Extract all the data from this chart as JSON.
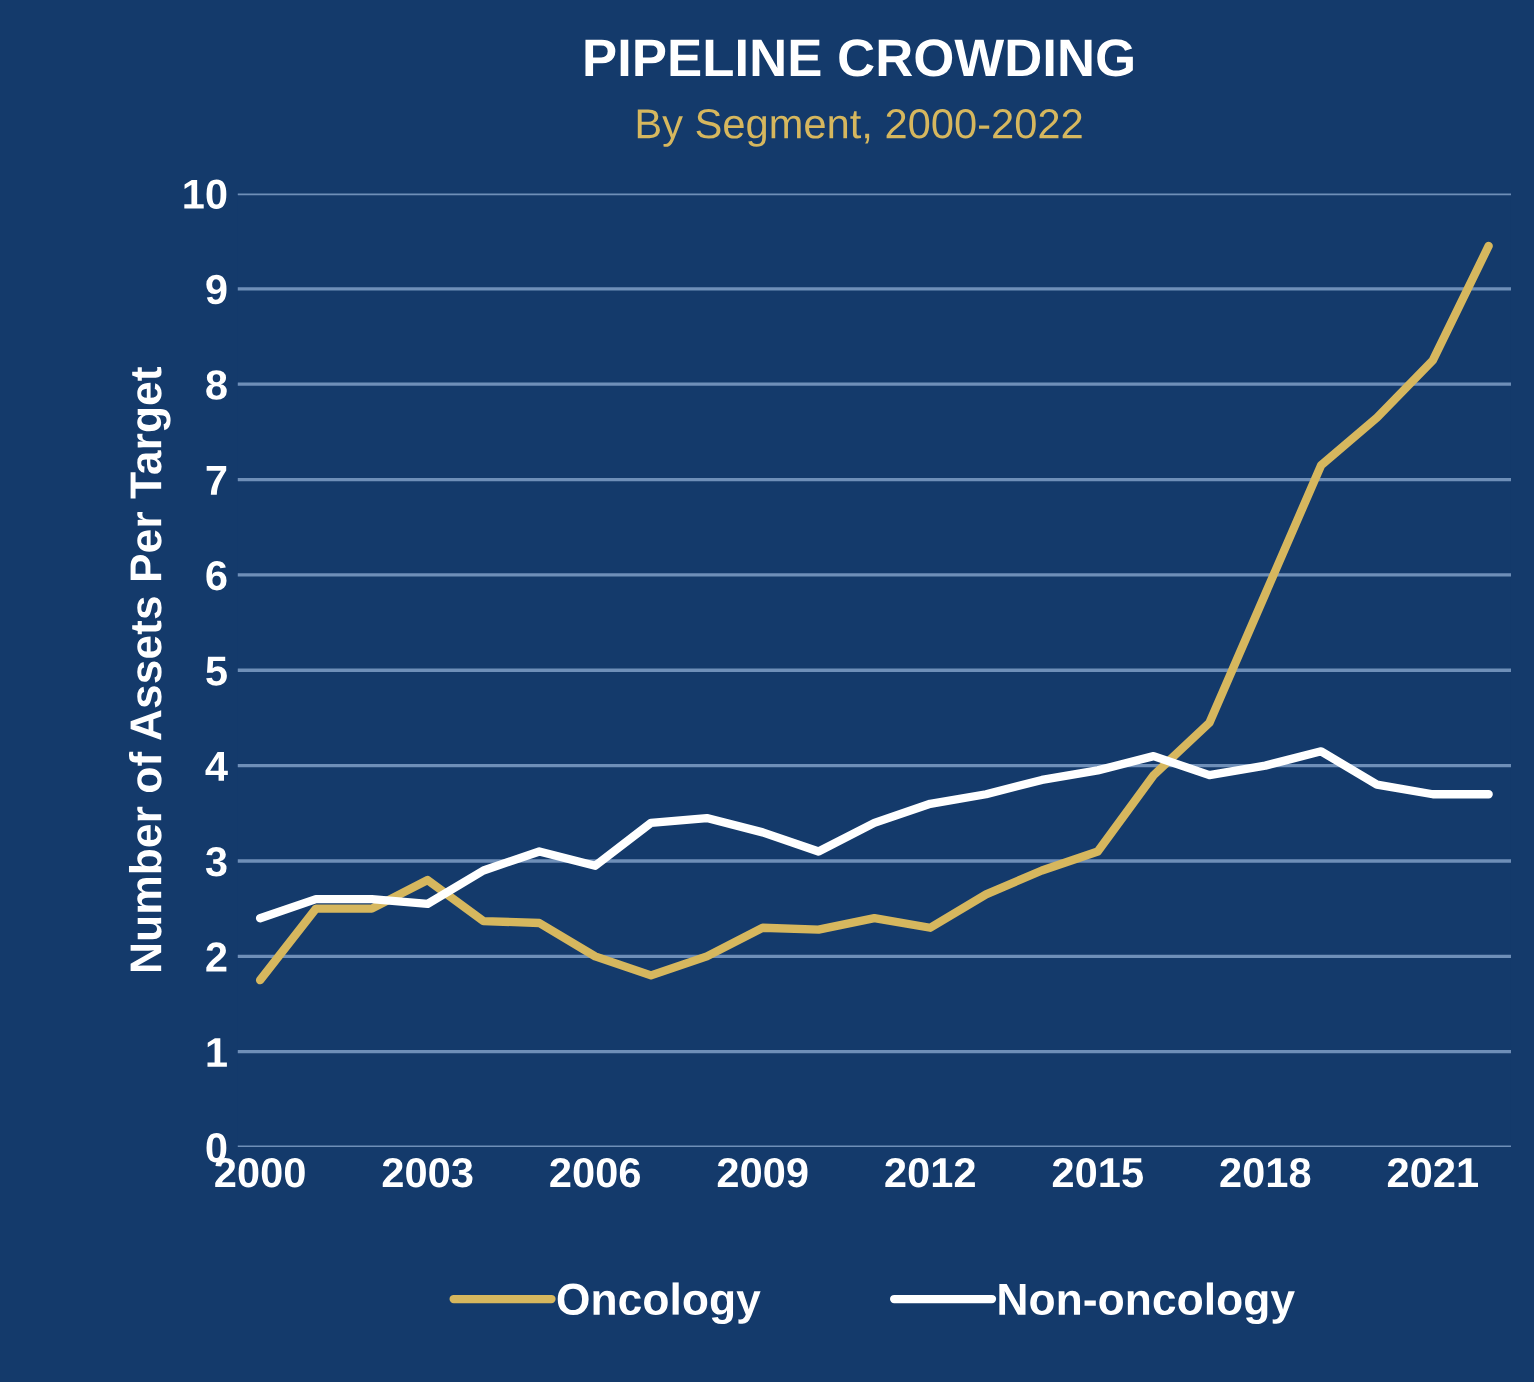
{
  "chart_data": {
    "type": "line",
    "title": "PIPELINE CROWDING",
    "subtitle": "By Segment, 2000-2022",
    "ylabel": "Number of Assets Per Target",
    "x": [
      2000,
      2001,
      2002,
      2003,
      2004,
      2005,
      2006,
      2007,
      2008,
      2009,
      2010,
      2011,
      2012,
      2013,
      2014,
      2015,
      2016,
      2017,
      2018,
      2019,
      2020,
      2021,
      2022
    ],
    "series": [
      {
        "name": "Oncology",
        "color": "#d6b75e",
        "values": [
          1.75,
          2.5,
          2.5,
          2.8,
          2.37,
          2.35,
          2.0,
          1.8,
          2.0,
          2.3,
          2.28,
          2.4,
          2.3,
          2.65,
          2.9,
          3.1,
          3.9,
          4.45,
          5.8,
          7.15,
          7.65,
          8.25,
          9.45
        ]
      },
      {
        "name": "Non-oncology",
        "color": "#ffffff",
        "values": [
          2.4,
          2.6,
          2.6,
          2.55,
          2.9,
          3.1,
          2.95,
          3.4,
          3.45,
          3.3,
          3.1,
          3.4,
          3.6,
          3.7,
          3.85,
          3.95,
          4.1,
          3.9,
          4.0,
          4.15,
          3.8,
          3.7,
          3.7
        ]
      }
    ],
    "xlim": [
      1999.6,
      2022.4
    ],
    "xticks": [
      2000,
      2003,
      2006,
      2009,
      2012,
      2015,
      2018,
      2021
    ],
    "ylim": [
      0,
      10
    ],
    "yticks": [
      0,
      1,
      2,
      3,
      4,
      5,
      6,
      7,
      8,
      9,
      10
    ],
    "grid": "y",
    "legend": "bottom",
    "marker": "none",
    "line_style": "solid"
  }
}
